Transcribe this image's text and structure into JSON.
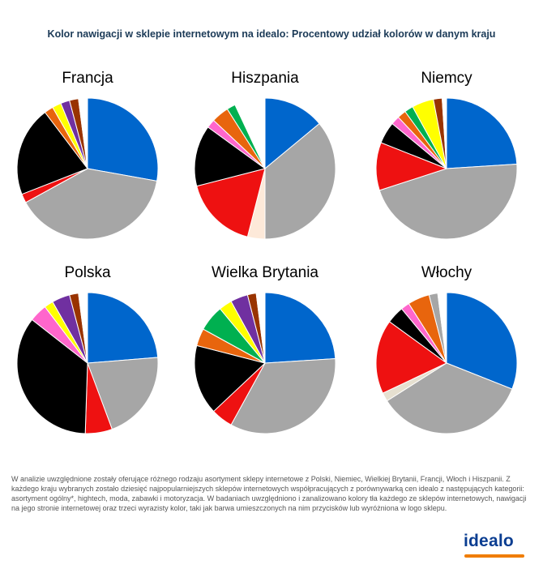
{
  "title": "Kolor nawigacji w sklepie internetowym na idealo: Procentowy udział kolorów w danym kraju",
  "footnote": "W analizie uwzględnione zostały oferujące różnego rodzaju asortyment sklepy internetowe z Polski, Niemiec, Wielkiej Brytanii, Francji, Włoch i Hiszpanii. Z każdego kraju wybranych zostało dziesięć najpopularniejszych sklepów internetowych współpracujących z porównywarką cen idealo z następujących kategorii: asortyment ogólny*, hightech, moda, zabawki i motoryzacja. W badaniach uwzględniono i zanalizowano kolory tła każdego ze sklepów internetowych, nawigacji na jego stronie internetowej oraz trzeci wyrazisty kolor, taki jak barwa umieszczonych na nim przycisków lub wyróżniona w logo sklepu.",
  "brand": "idealo",
  "colors": {
    "title": "#1b3a57",
    "brand": "#0a3d91",
    "brand_accent": "#f07d00",
    "blue": "#0066cc",
    "grey": "#a6a6a6",
    "red": "#ee1111",
    "black": "#000000",
    "orange": "#e8650d",
    "yellow": "#ffff00",
    "purple": "#7030a0",
    "brown": "#993300",
    "white": "#ffffff",
    "green": "#00b050",
    "pink": "#ff66cc",
    "beige": "#fde9d9",
    "darkgreen": "#00b050",
    "tan": "#e6e0d0",
    "darkgrey": "#a6a6a6"
  },
  "chart_data": [
    {
      "type": "pie",
      "title": "Francja",
      "slices": [
        {
          "color": "blue",
          "value": 27
        },
        {
          "color": "grey",
          "value": 38
        },
        {
          "color": "red",
          "value": 2
        },
        {
          "color": "black",
          "value": 20
        },
        {
          "color": "orange",
          "value": 2
        },
        {
          "color": "yellow",
          "value": 2
        },
        {
          "color": "purple",
          "value": 2
        },
        {
          "color": "brown",
          "value": 2
        },
        {
          "color": "white",
          "value": 2
        }
      ]
    },
    {
      "type": "pie",
      "title": "Hiszpania",
      "slices": [
        {
          "color": "blue",
          "value": 14
        },
        {
          "color": "grey",
          "value": 36
        },
        {
          "color": "beige",
          "value": 4
        },
        {
          "color": "red",
          "value": 17
        },
        {
          "color": "black",
          "value": 14
        },
        {
          "color": "pink",
          "value": 2
        },
        {
          "color": "orange",
          "value": 4
        },
        {
          "color": "green",
          "value": 2
        },
        {
          "color": "white",
          "value": 7
        }
      ]
    },
    {
      "type": "pie",
      "title": "Niemcy",
      "slices": [
        {
          "color": "blue",
          "value": 24
        },
        {
          "color": "grey",
          "value": 46
        },
        {
          "color": "red",
          "value": 11
        },
        {
          "color": "black",
          "value": 5
        },
        {
          "color": "pink",
          "value": 2
        },
        {
          "color": "orange",
          "value": 2
        },
        {
          "color": "green",
          "value": 2
        },
        {
          "color": "yellow",
          "value": 5
        },
        {
          "color": "brown",
          "value": 2
        },
        {
          "color": "white",
          "value": 1
        }
      ]
    },
    {
      "type": "pie",
      "title": "Polska",
      "slices": [
        {
          "color": "blue",
          "value": 23
        },
        {
          "color": "grey",
          "value": 20
        },
        {
          "color": "red",
          "value": 6
        },
        {
          "color": "black",
          "value": 34
        },
        {
          "color": "pink",
          "value": 4
        },
        {
          "color": "yellow",
          "value": 2
        },
        {
          "color": "purple",
          "value": 4
        },
        {
          "color": "brown",
          "value": 2
        },
        {
          "color": "white",
          "value": 2
        }
      ]
    },
    {
      "type": "pie",
      "title": "Wielka Brytania",
      "slices": [
        {
          "color": "blue",
          "value": 24
        },
        {
          "color": "grey",
          "value": 34
        },
        {
          "color": "red",
          "value": 5
        },
        {
          "color": "black",
          "value": 16
        },
        {
          "color": "orange",
          "value": 4
        },
        {
          "color": "green",
          "value": 6
        },
        {
          "color": "yellow",
          "value": 3
        },
        {
          "color": "purple",
          "value": 4
        },
        {
          "color": "brown",
          "value": 2
        },
        {
          "color": "white",
          "value": 2
        }
      ]
    },
    {
      "type": "pie",
      "title": "Włochy",
      "slices": [
        {
          "color": "blue",
          "value": 31
        },
        {
          "color": "grey",
          "value": 35
        },
        {
          "color": "tan",
          "value": 2
        },
        {
          "color": "red",
          "value": 17
        },
        {
          "color": "black",
          "value": 4
        },
        {
          "color": "pink",
          "value": 2
        },
        {
          "color": "orange",
          "value": 5
        },
        {
          "color": "darkgrey",
          "value": 2
        },
        {
          "color": "white",
          "value": 2
        }
      ]
    }
  ]
}
